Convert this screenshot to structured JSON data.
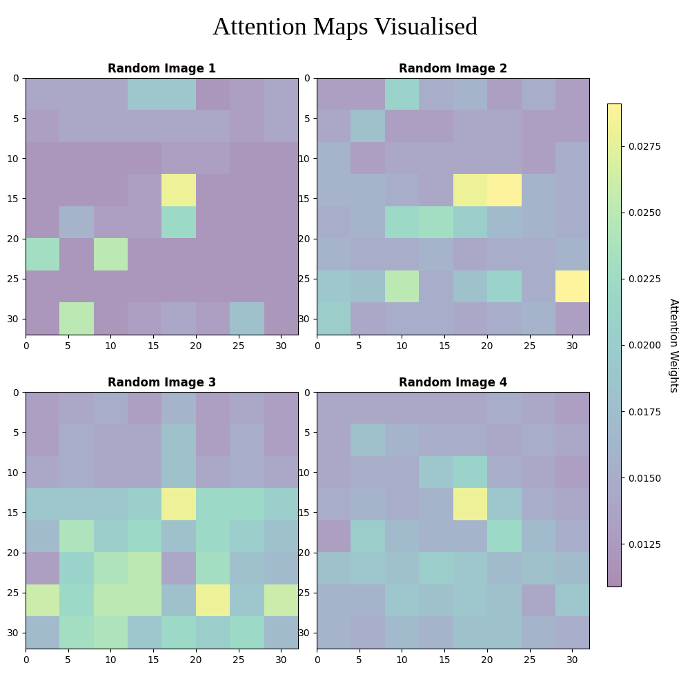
{
  "title": "Attention Maps Visualised",
  "colorbar": {
    "label": "Attention Weights",
    "range": [
      0.0109,
      0.0291
    ],
    "ticks": [
      0.0125,
      {
        "value": 0.015,
        "label": "0.0150"
      },
      0.0175,
      {
        "value": 0.02,
        "label": "0.0200"
      },
      0.0225,
      {
        "value": 0.025,
        "label": "0.0250"
      },
      0.0275
    ]
  },
  "chart_data": [
    {
      "type": "heatmap",
      "title": "Random Image 1",
      "xlim": [
        0,
        32
      ],
      "ylim": [
        32,
        0
      ],
      "xticks": [
        0,
        5,
        10,
        15,
        20,
        25,
        30
      ],
      "yticks": [
        0,
        5,
        10,
        15,
        20,
        25,
        30
      ],
      "cells": [
        [
          0.014,
          0.014,
          0.014,
          0.019,
          0.019,
          0.012,
          0.013,
          0.014
        ],
        [
          0.013,
          0.014,
          0.014,
          0.014,
          0.014,
          0.014,
          0.013,
          0.014
        ],
        [
          0.012,
          0.012,
          0.012,
          0.012,
          0.013,
          0.013,
          0.012,
          0.012
        ],
        [
          0.012,
          0.012,
          0.012,
          0.013,
          0.028,
          0.012,
          0.012,
          0.012
        ],
        [
          0.012,
          0.016,
          0.013,
          0.013,
          0.022,
          0.012,
          0.012,
          0.012
        ],
        [
          0.023,
          0.012,
          0.025,
          0.012,
          0.012,
          0.012,
          0.012,
          0.012
        ],
        [
          0.012,
          0.012,
          0.012,
          0.012,
          0.012,
          0.012,
          0.012,
          0.012
        ],
        [
          0.012,
          0.025,
          0.012,
          0.013,
          0.014,
          0.013,
          0.018,
          0.012
        ]
      ]
    },
    {
      "type": "heatmap",
      "title": "Random Image 2",
      "xlim": [
        0,
        32
      ],
      "ylim": [
        32,
        0
      ],
      "xticks": [
        0,
        5,
        10,
        15,
        20,
        25,
        30
      ],
      "yticks": [
        0,
        5,
        10,
        15,
        20,
        25,
        30
      ],
      "cells": [
        [
          0.013,
          0.013,
          0.021,
          0.015,
          0.016,
          0.013,
          0.015,
          0.013
        ],
        [
          0.014,
          0.018,
          0.013,
          0.013,
          0.014,
          0.014,
          0.013,
          0.013
        ],
        [
          0.016,
          0.013,
          0.014,
          0.014,
          0.014,
          0.014,
          0.013,
          0.015
        ],
        [
          0.016,
          0.016,
          0.015,
          0.014,
          0.028,
          0.029,
          0.016,
          0.015
        ],
        [
          0.015,
          0.016,
          0.022,
          0.023,
          0.02,
          0.017,
          0.016,
          0.015
        ],
        [
          0.016,
          0.015,
          0.015,
          0.016,
          0.014,
          0.015,
          0.015,
          0.016
        ],
        [
          0.019,
          0.018,
          0.025,
          0.015,
          0.018,
          0.021,
          0.015,
          0.0291
        ],
        [
          0.02,
          0.014,
          0.015,
          0.015,
          0.014,
          0.015,
          0.016,
          0.013
        ]
      ]
    },
    {
      "type": "heatmap",
      "title": "Random Image 3",
      "xlim": [
        0,
        32
      ],
      "ylim": [
        32,
        0
      ],
      "xticks": [
        0,
        5,
        10,
        15,
        20,
        25,
        30
      ],
      "yticks": [
        0,
        5,
        10,
        15,
        20,
        25,
        30
      ],
      "cells": [
        [
          0.013,
          0.014,
          0.015,
          0.013,
          0.016,
          0.013,
          0.014,
          0.013
        ],
        [
          0.013,
          0.015,
          0.014,
          0.014,
          0.018,
          0.013,
          0.015,
          0.013
        ],
        [
          0.014,
          0.015,
          0.014,
          0.014,
          0.018,
          0.014,
          0.015,
          0.014
        ],
        [
          0.019,
          0.019,
          0.019,
          0.02,
          0.028,
          0.022,
          0.022,
          0.02
        ],
        [
          0.017,
          0.024,
          0.02,
          0.022,
          0.018,
          0.022,
          0.02,
          0.018
        ],
        [
          0.013,
          0.021,
          0.024,
          0.025,
          0.014,
          0.023,
          0.018,
          0.017
        ],
        [
          0.026,
          0.022,
          0.025,
          0.025,
          0.018,
          0.028,
          0.019,
          0.026
        ],
        [
          0.017,
          0.023,
          0.024,
          0.019,
          0.022,
          0.02,
          0.022,
          0.017
        ]
      ]
    },
    {
      "type": "heatmap",
      "title": "Random Image 4",
      "xlim": [
        0,
        32
      ],
      "ylim": [
        32,
        0
      ],
      "xticks": [
        0,
        5,
        10,
        15,
        20,
        25,
        30
      ],
      "yticks": [
        0,
        5,
        10,
        15,
        20,
        25,
        30
      ],
      "cells": [
        [
          0.014,
          0.014,
          0.014,
          0.014,
          0.014,
          0.015,
          0.014,
          0.013
        ],
        [
          0.014,
          0.018,
          0.016,
          0.015,
          0.015,
          0.014,
          0.015,
          0.014
        ],
        [
          0.014,
          0.015,
          0.015,
          0.019,
          0.021,
          0.015,
          0.014,
          0.013
        ],
        [
          0.015,
          0.016,
          0.015,
          0.016,
          0.028,
          0.019,
          0.015,
          0.014
        ],
        [
          0.013,
          0.02,
          0.017,
          0.016,
          0.016,
          0.022,
          0.017,
          0.015
        ],
        [
          0.018,
          0.019,
          0.018,
          0.02,
          0.019,
          0.017,
          0.018,
          0.017
        ],
        [
          0.016,
          0.016,
          0.019,
          0.018,
          0.019,
          0.018,
          0.014,
          0.019
        ],
        [
          0.016,
          0.015,
          0.017,
          0.016,
          0.018,
          0.018,
          0.016,
          0.015
        ]
      ]
    }
  ]
}
